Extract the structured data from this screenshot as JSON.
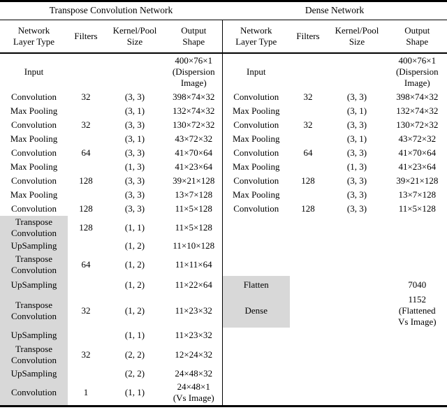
{
  "titles": {
    "left": "Transpose Convolution Network",
    "right": "Dense Network"
  },
  "column_headers": [
    "Network\nLayer Type",
    "Filters",
    "Kernel/Pool\nSize",
    "Output\nShape"
  ],
  "colors": {
    "highlight": "#d8d8d8",
    "rule": "#000000"
  },
  "rows": [
    {
      "l": {
        "layer": "Input",
        "filters": "",
        "kernel": "",
        "output": "400×76×1\n(Dispersion\nImage)"
      },
      "r": {
        "layer": "Input",
        "filters": "",
        "kernel": "",
        "output": "400×76×1\n(Dispersion\nImage)"
      }
    },
    {
      "l": {
        "layer": "Convolution",
        "filters": "32",
        "kernel": "(3, 3)",
        "output": "398×74×32"
      },
      "r": {
        "layer": "Convolution",
        "filters": "32",
        "kernel": "(3, 3)",
        "output": "398×74×32"
      }
    },
    {
      "l": {
        "layer": "Max Pooling",
        "filters": "",
        "kernel": "(3, 1)",
        "output": "132×74×32"
      },
      "r": {
        "layer": "Max Pooling",
        "filters": "",
        "kernel": "(3, 1)",
        "output": "132×74×32"
      }
    },
    {
      "l": {
        "layer": "Convolution",
        "filters": "32",
        "kernel": "(3, 3)",
        "output": "130×72×32"
      },
      "r": {
        "layer": "Convolution",
        "filters": "32",
        "kernel": "(3, 3)",
        "output": "130×72×32"
      }
    },
    {
      "l": {
        "layer": "Max Pooling",
        "filters": "",
        "kernel": "(3, 1)",
        "output": "43×72×32"
      },
      "r": {
        "layer": "Max Pooling",
        "filters": "",
        "kernel": "(3, 1)",
        "output": "43×72×32"
      }
    },
    {
      "l": {
        "layer": "Convolution",
        "filters": "64",
        "kernel": "(3, 3)",
        "output": "41×70×64"
      },
      "r": {
        "layer": "Convolution",
        "filters": "64",
        "kernel": "(3, 3)",
        "output": "41×70×64"
      }
    },
    {
      "l": {
        "layer": "Max Pooling",
        "filters": "",
        "kernel": "(1, 3)",
        "output": "41×23×64"
      },
      "r": {
        "layer": "Max Pooling",
        "filters": "",
        "kernel": "(1, 3)",
        "output": "41×23×64"
      }
    },
    {
      "l": {
        "layer": "Convolution",
        "filters": "128",
        "kernel": "(3, 3)",
        "output": "39×21×128"
      },
      "r": {
        "layer": "Convolution",
        "filters": "128",
        "kernel": "(3, 3)",
        "output": "39×21×128"
      }
    },
    {
      "l": {
        "layer": "Max Pooling",
        "filters": "",
        "kernel": "(3, 3)",
        "output": "13×7×128"
      },
      "r": {
        "layer": "Max Pooling",
        "filters": "",
        "kernel": "(3, 3)",
        "output": "13×7×128"
      }
    },
    {
      "l": {
        "layer": "Convolution",
        "filters": "128",
        "kernel": "(3, 3)",
        "output": "11×5×128"
      },
      "r": {
        "layer": "Convolution",
        "filters": "128",
        "kernel": "(3, 3)",
        "output": "11×5×128"
      }
    },
    {
      "l": {
        "layer": "Transpose\nConvolution",
        "filters": "128",
        "kernel": "(1, 1)",
        "output": "11×5×128"
      },
      "r": {
        "layer": "",
        "filters": "",
        "kernel": "",
        "output": ""
      }
    },
    {
      "l": {
        "layer": "UpSampling",
        "filters": "",
        "kernel": "(1, 2)",
        "output": "11×10×128"
      },
      "r": {
        "layer": "",
        "filters": "",
        "kernel": "",
        "output": ""
      }
    },
    {
      "l": {
        "layer": "Transpose\nConvolution",
        "filters": "64",
        "kernel": "(1, 2)",
        "output": "11×11×64"
      },
      "r": {
        "layer": "",
        "filters": "",
        "kernel": "",
        "output": ""
      }
    },
    {
      "l": {
        "layer": "UpSampling",
        "filters": "",
        "kernel": "(1, 2)",
        "output": "11×22×64"
      },
      "r": {
        "layer": "Flatten",
        "filters": "",
        "kernel": "",
        "output": "7040"
      }
    },
    {
      "l": {
        "layer": "Transpose\nConvolution",
        "filters": "32",
        "kernel": "(1, 2)",
        "output": "11×23×32"
      },
      "r": {
        "layer": "Dense",
        "filters": "",
        "kernel": "",
        "output": "1152\n(Flattened\nVs Image)"
      }
    },
    {
      "l": {
        "layer": "UpSampling",
        "filters": "",
        "kernel": "(1, 1)",
        "output": "11×23×32"
      },
      "r": {
        "layer": "",
        "filters": "",
        "kernel": "",
        "output": ""
      }
    },
    {
      "l": {
        "layer": "Transpose\nConvolution",
        "filters": "32",
        "kernel": "(2, 2)",
        "output": "12×24×32"
      },
      "r": {
        "layer": "",
        "filters": "",
        "kernel": "",
        "output": ""
      }
    },
    {
      "l": {
        "layer": "UpSampling",
        "filters": "",
        "kernel": "(2, 2)",
        "output": "24×48×32"
      },
      "r": {
        "layer": "",
        "filters": "",
        "kernel": "",
        "output": ""
      }
    },
    {
      "l": {
        "layer": "Convolution",
        "filters": "1",
        "kernel": "(1, 1)",
        "output": "24×48×1\n(Vs Image)"
      },
      "r": {
        "layer": "",
        "filters": "",
        "kernel": "",
        "output": ""
      }
    }
  ]
}
